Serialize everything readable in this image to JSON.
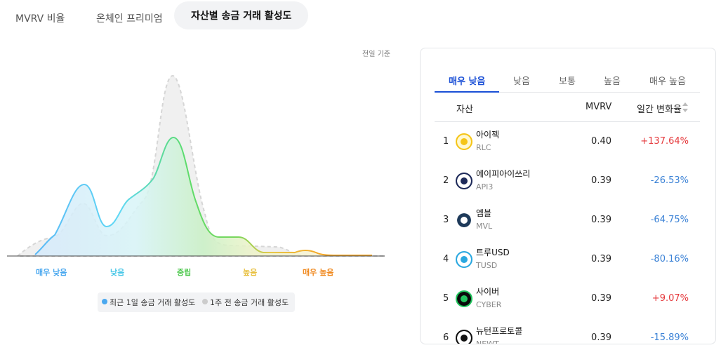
{
  "tabs": [
    "MVRV 비율",
    "온체인 프리미엄",
    "자산별 송금 거래 활성도"
  ],
  "note": "전일 기준",
  "zones": [
    "매우 낮음",
    "낮음",
    "중립",
    "높음",
    "매우 높음"
  ],
  "legend": [
    "최근 1일 송금 거래 활성도",
    "1주 전 송금 거래 활성도"
  ],
  "panel": {
    "tabs": [
      "매우 낮음",
      "낮음",
      "보통",
      "높음",
      "매우 높음"
    ],
    "columns": [
      "자산",
      "MVRV",
      "일간 변화율"
    ],
    "rows": [
      {
        "rank": 1,
        "name": "아이젝",
        "symbol": "RLC",
        "mvrv": "0.40",
        "change": "+137.64%"
      },
      {
        "rank": 2,
        "name": "에이피아이쓰리",
        "symbol": "API3",
        "mvrv": "0.39",
        "change": "-26.53%"
      },
      {
        "rank": 3,
        "name": "엠블",
        "symbol": "MVL",
        "mvrv": "0.39",
        "change": "-64.75%"
      },
      {
        "rank": 4,
        "name": "트루USD",
        "symbol": "TUSD",
        "mvrv": "0.39",
        "change": "-80.16%"
      },
      {
        "rank": 5,
        "name": "사이버",
        "symbol": "CYBER",
        "mvrv": "0.39",
        "change": "+9.07%"
      },
      {
        "rank": 6,
        "name": "뉴턴프로토콜",
        "symbol": "NEWT",
        "mvrv": "0.39",
        "change": "-15.89%"
      }
    ]
  }
}
